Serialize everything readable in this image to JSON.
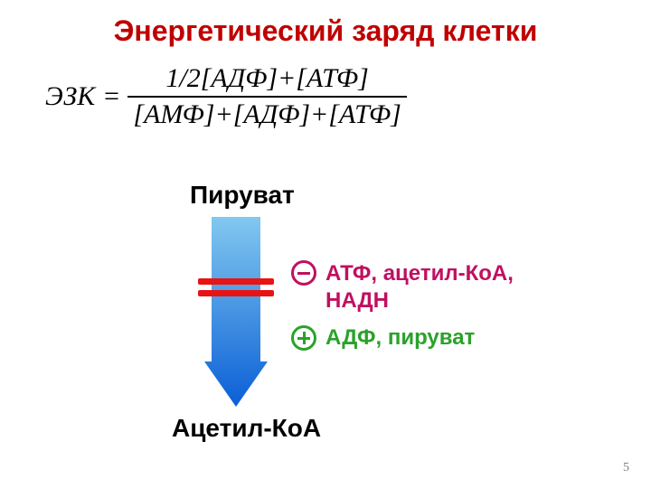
{
  "title": {
    "text": "Энергетический заряд клетки",
    "color": "#c00000",
    "fontsize": 32
  },
  "formula": {
    "lhs": "ЭЗК",
    "numerator": "1/2[АДФ]+[АТФ]",
    "denominator": "[АМФ]+[АДФ]+[АТФ]",
    "fontsize": 30,
    "color": "#000000"
  },
  "diagram": {
    "from_label": "Пируват",
    "to_label": "Ацетил-КоА",
    "label_fontsize": 28,
    "label_color": "#000000",
    "arrow": {
      "gradient_top": "#82c8f0",
      "gradient_bottom": "#0a5fd6",
      "width": 54,
      "head_width": 70,
      "length": 210
    },
    "inhibition_bars": {
      "color": "#e81313",
      "bar_thickness": 7,
      "gap": 6,
      "length": 84
    },
    "inhibitors": {
      "icon_color": "#c01060",
      "text_color": "#c01060",
      "label_line1": "АТФ, ацетил-КоА,",
      "label_line2": "НАДН",
      "fontsize": 24
    },
    "activators": {
      "icon_color": "#2aa22a",
      "text_color": "#2aa22a",
      "label": "АДФ, пируват",
      "fontsize": 24
    }
  },
  "page_number": "5",
  "page_number_color": "#7f7f7f",
  "page_number_fontsize": 14,
  "background_color": "#ffffff"
}
